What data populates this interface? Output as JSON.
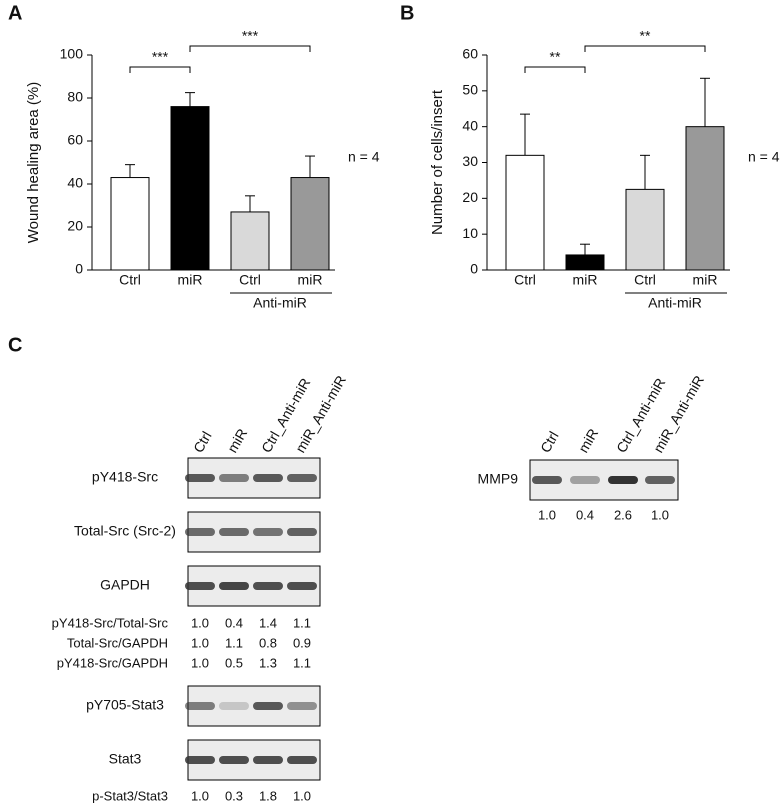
{
  "panel_labels": [
    "A",
    "B",
    "C"
  ],
  "chart_data": [
    {
      "type": "bar",
      "ylabel": "Wound healing area (%)",
      "categories": [
        "Ctrl",
        "miR",
        "Ctrl",
        "miR"
      ],
      "values": [
        43,
        76,
        27,
        43
      ],
      "errors": [
        6,
        6.5,
        7.5,
        10
      ],
      "colors": [
        "#ffffff",
        "#000000",
        "#d9d9d9",
        "#999999"
      ],
      "ylim": [
        0,
        100
      ],
      "yticks": [
        0,
        20,
        40,
        60,
        80,
        100
      ],
      "groups": [
        {
          "label": "Anti-miR",
          "from": 2,
          "to": 3
        }
      ],
      "annotations": [
        {
          "text": "***",
          "from": 0,
          "to": 1
        },
        {
          "text": "***",
          "from": 1,
          "to": 3
        }
      ],
      "note": "n = 4"
    },
    {
      "type": "bar",
      "ylabel": "Number of cells/insert",
      "categories": [
        "Ctrl",
        "miR",
        "Ctrl",
        "miR"
      ],
      "values": [
        32,
        4.2,
        22.5,
        40
      ],
      "errors": [
        11.5,
        3,
        9.5,
        13.5
      ],
      "colors": [
        "#ffffff",
        "#000000",
        "#d9d9d9",
        "#999999"
      ],
      "ylim": [
        0,
        60
      ],
      "yticks": [
        0,
        10,
        20,
        30,
        40,
        50,
        60
      ],
      "groups": [
        {
          "label": "Anti-miR",
          "from": 2,
          "to": 3
        }
      ],
      "annotations": [
        {
          "text": "**",
          "from": 0,
          "to": 1
        },
        {
          "text": "**",
          "from": 1,
          "to": 3
        }
      ],
      "note": "n = 4"
    }
  ],
  "blots": {
    "lanes": [
      "Ctrl",
      "miR",
      "Ctrl_Anti-miR",
      "miR_Anti-miR"
    ],
    "src_rows": [
      "pY418-Src",
      "Total-Src (Src-2)",
      "GAPDH"
    ],
    "src_ratios": [
      {
        "label": "pY418-Src/Total-Src",
        "values": [
          "1.0",
          "0.4",
          "1.4",
          "1.1"
        ]
      },
      {
        "label": "Total-Src/GAPDH",
        "values": [
          "1.0",
          "1.1",
          "0.8",
          "0.9"
        ]
      },
      {
        "label": "pY418-Src/GAPDH",
        "values": [
          "1.0",
          "0.5",
          "1.3",
          "1.1"
        ]
      }
    ],
    "stat_rows": [
      "pY705-Stat3",
      "Stat3"
    ],
    "stat_ratio": {
      "label": "p-Stat3/Stat3",
      "values": [
        "1.0",
        "0.3",
        "1.8",
        "1.0"
      ]
    },
    "mmp9": {
      "label": "MMP9",
      "values": [
        "1.0",
        "0.4",
        "2.6",
        "1.0"
      ]
    }
  }
}
